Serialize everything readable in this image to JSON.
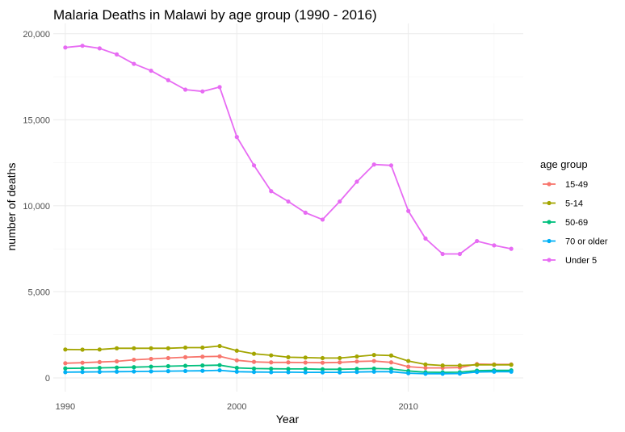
{
  "chart_data": {
    "type": "line",
    "title": "Malaria Deaths in Malawi by age group (1990 - 2016)",
    "xlabel": "Year",
    "ylabel": "number of deaths",
    "xlim": [
      1989.3,
      2016.7
    ],
    "ylim": [
      -800,
      20600
    ],
    "x_ticks": [
      1990,
      2000,
      2010
    ],
    "x_tick_labels": [
      "1990",
      "2000",
      "2010"
    ],
    "y_ticks": [
      0,
      5000,
      10000,
      15000,
      20000
    ],
    "y_tick_labels": [
      "0",
      "5,000",
      "10,000",
      "15,000",
      "20,000"
    ],
    "grid": true,
    "legend": {
      "title": "age group",
      "position": "right"
    },
    "x": [
      1990,
      1991,
      1992,
      1993,
      1994,
      1995,
      1996,
      1997,
      1998,
      1999,
      2000,
      2001,
      2002,
      2003,
      2004,
      2005,
      2006,
      2007,
      2008,
      2009,
      2010,
      2011,
      2012,
      2013,
      2014,
      2015,
      2016
    ],
    "series": [
      {
        "name": "15-49",
        "color": "#F8766D",
        "values": [
          850,
          880,
          920,
          960,
          1050,
          1100,
          1150,
          1200,
          1230,
          1250,
          1020,
          930,
          900,
          900,
          890,
          880,
          900,
          950,
          980,
          900,
          650,
          580,
          580,
          600,
          800,
          780,
          780
        ]
      },
      {
        "name": "5-14",
        "color": "#A3A500",
        "values": [
          1650,
          1640,
          1650,
          1720,
          1720,
          1720,
          1720,
          1760,
          1760,
          1850,
          1580,
          1400,
          1310,
          1200,
          1180,
          1150,
          1150,
          1240,
          1330,
          1300,
          980,
          780,
          720,
          720,
          760,
          760,
          760
        ]
      },
      {
        "name": "50-69",
        "color": "#00BF7D",
        "values": [
          550,
          560,
          580,
          600,
          620,
          650,
          680,
          700,
          720,
          740,
          580,
          540,
          530,
          520,
          520,
          500,
          500,
          520,
          540,
          520,
          400,
          330,
          320,
          330,
          420,
          440,
          440
        ]
      },
      {
        "name": "70 or older",
        "color": "#00B0F6",
        "values": [
          330,
          340,
          350,
          360,
          370,
          380,
          390,
          400,
          410,
          440,
          360,
          340,
          330,
          330,
          320,
          320,
          320,
          340,
          360,
          360,
          270,
          240,
          240,
          250,
          340,
          360,
          360
        ]
      },
      {
        "name": "Under 5",
        "color": "#E76BF3",
        "values": [
          19200,
          19300,
          19150,
          18800,
          18250,
          17850,
          17300,
          16750,
          16650,
          16900,
          14000,
          12350,
          10850,
          10250,
          9600,
          9200,
          10250,
          11400,
          12400,
          12350,
          9700,
          8100,
          7200,
          7200,
          7950,
          7700,
          7500
        ]
      }
    ]
  }
}
